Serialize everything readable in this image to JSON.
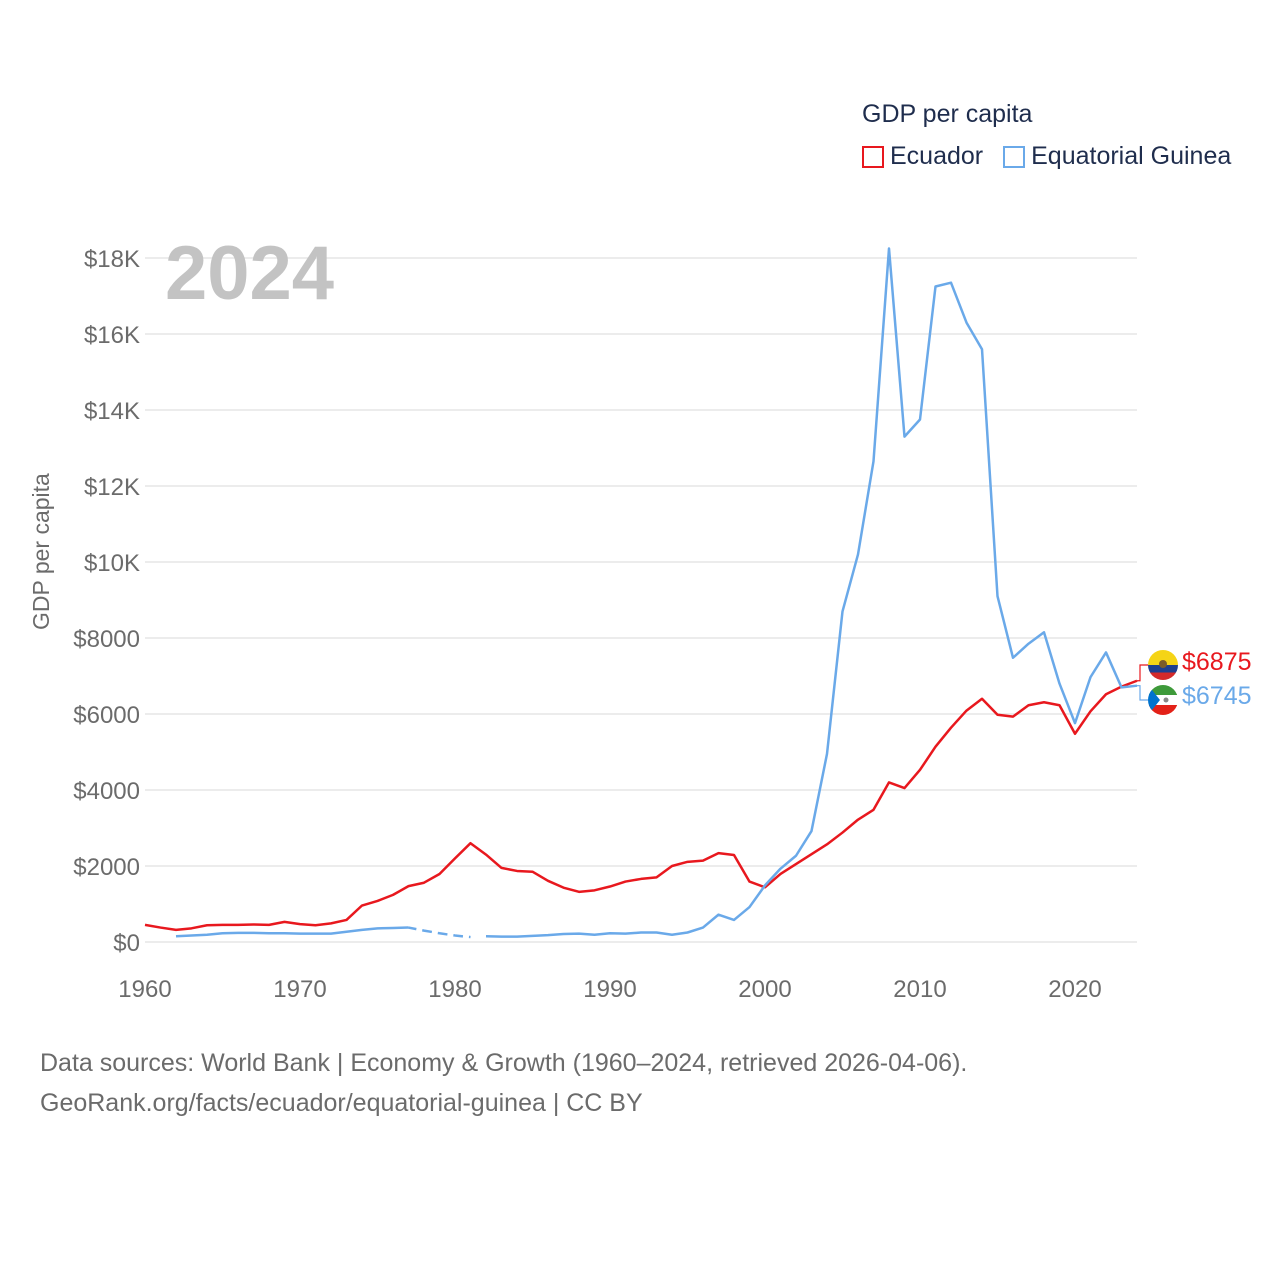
{
  "legend": {
    "title": "GDP per capita",
    "entries": [
      {
        "name": "Ecuador",
        "color": "#e8181e"
      },
      {
        "name": "Equatorial Guinea",
        "color": "#6aa9e9"
      }
    ]
  },
  "year_label": "2024",
  "ylabel": "GDP per capita",
  "end_labels": {
    "ecuador": "$6875",
    "equatorial_guinea": "$6745"
  },
  "source": {
    "line1": "Data sources: World Bank | Economy & Growth (1960–2024, retrieved 2026-04-06).",
    "line2": "GeoRank.org/facts/ecuador/equatorial-guinea | CC BY"
  },
  "chart_data": {
    "type": "line",
    "title": "GDP per capita",
    "xlabel": "",
    "ylabel": "GDP per capita",
    "xlim": [
      1960,
      2024
    ],
    "ylim": [
      0,
      18000
    ],
    "x_ticks": [
      1960,
      1970,
      1980,
      1990,
      2000,
      2010,
      2020
    ],
    "y_ticks": [
      {
        "value": 0,
        "label": "$0"
      },
      {
        "value": 2000,
        "label": "$2000"
      },
      {
        "value": 4000,
        "label": "$4000"
      },
      {
        "value": 6000,
        "label": "$6000"
      },
      {
        "value": 8000,
        "label": "$8000"
      },
      {
        "value": 10000,
        "label": "$10K"
      },
      {
        "value": 12000,
        "label": "$12K"
      },
      {
        "value": 14000,
        "label": "$14K"
      },
      {
        "value": 16000,
        "label": "$16K"
      },
      {
        "value": 18000,
        "label": "$18K"
      }
    ],
    "series": [
      {
        "name": "Ecuador",
        "color": "#e8181e",
        "x": [
          1960,
          1961,
          1962,
          1963,
          1964,
          1965,
          1966,
          1967,
          1968,
          1969,
          1970,
          1971,
          1972,
          1973,
          1974,
          1975,
          1976,
          1977,
          1978,
          1979,
          1980,
          1981,
          1982,
          1983,
          1984,
          1985,
          1986,
          1987,
          1988,
          1989,
          1990,
          1991,
          1992,
          1993,
          1994,
          1995,
          1996,
          1997,
          1998,
          1999,
          2000,
          2001,
          2002,
          2003,
          2004,
          2005,
          2006,
          2007,
          2008,
          2009,
          2010,
          2011,
          2012,
          2013,
          2014,
          2015,
          2016,
          2017,
          2018,
          2019,
          2020,
          2021,
          2022,
          2023,
          2024
        ],
        "values": [
          450,
          380,
          320,
          360,
          440,
          450,
          450,
          460,
          450,
          530,
          470,
          440,
          490,
          580,
          960,
          1080,
          1240,
          1470,
          1560,
          1790,
          2200,
          2600,
          2300,
          1950,
          1870,
          1850,
          1610,
          1430,
          1320,
          1360,
          1460,
          1590,
          1660,
          1700,
          2000,
          2110,
          2140,
          2340,
          2290,
          1590,
          1440,
          1790,
          2050,
          2310,
          2570,
          2880,
          3220,
          3480,
          4200,
          4050,
          4530,
          5140,
          5640,
          6090,
          6400,
          5980,
          5930,
          6230,
          6310,
          6230,
          5480,
          6070,
          6520,
          6720,
          6875
        ]
      },
      {
        "name": "Equatorial Guinea",
        "color": "#6aa9e9",
        "x": [
          1962,
          1963,
          1964,
          1965,
          1966,
          1967,
          1968,
          1969,
          1970,
          1971,
          1972,
          1973,
          1974,
          1975,
          1976,
          1977,
          1978,
          1979,
          1980,
          1981,
          1982,
          1983,
          1984,
          1985,
          1986,
          1987,
          1988,
          1989,
          1990,
          1991,
          1992,
          1993,
          1994,
          1995,
          1996,
          1997,
          1998,
          1999,
          2000,
          2001,
          2002,
          2003,
          2004,
          2005,
          2006,
          2007,
          2008,
          2009,
          2010,
          2011,
          2012,
          2013,
          2014,
          2015,
          2016,
          2017,
          2018,
          2019,
          2020,
          2021,
          2022,
          2023,
          2024
        ],
        "values": [
          150,
          170,
          190,
          230,
          240,
          240,
          230,
          230,
          220,
          220,
          220,
          270,
          320,
          360,
          370,
          380,
          300,
          230,
          170,
          130,
          150,
          140,
          140,
          160,
          180,
          210,
          220,
          190,
          230,
          220,
          250,
          250,
          190,
          250,
          380,
          720,
          580,
          920,
          1490,
          1930,
          2270,
          2920,
          4950,
          8700,
          10200,
          12650,
          18250,
          13300,
          13750,
          17250,
          17350,
          16300,
          15600,
          9100,
          7480,
          7850,
          8150,
          6800,
          5760,
          6970,
          7620,
          6700,
          6745
        ],
        "gap_years": [
          [
            1977,
            1981
          ]
        ]
      }
    ]
  }
}
